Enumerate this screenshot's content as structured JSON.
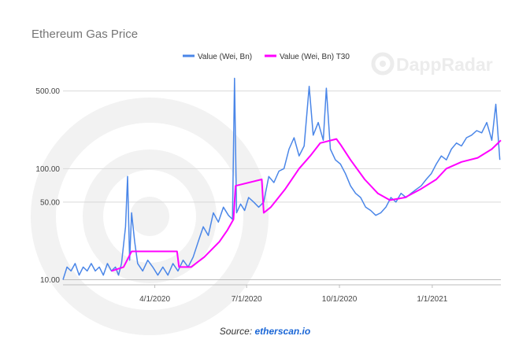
{
  "chart_data": {
    "type": "line",
    "title": "Ethereum Gas Price",
    "y_scale": "log",
    "ylim": [
      9,
      700
    ],
    "y_ticks": [
      {
        "value": 10,
        "label": "10.00"
      },
      {
        "value": 50,
        "label": "50.00"
      },
      {
        "value": 100,
        "label": "100.00"
      },
      {
        "value": 500,
        "label": "500.00"
      }
    ],
    "xlim": [
      "2020-01-01",
      "2021-03-10"
    ],
    "x_ticks": [
      {
        "value": "2020-04-01",
        "label": "4/1/2020"
      },
      {
        "value": "2020-07-01",
        "label": "7/1/2020"
      },
      {
        "value": "2020-10-01",
        "label": "10/1/2020"
      },
      {
        "value": "2021-01-01",
        "label": "1/1/2021"
      }
    ],
    "grid": "horizontal",
    "legend_position": "top",
    "series": [
      {
        "name": "Value (Wei, Bn)",
        "color": "#4a86e8",
        "points": [
          [
            "2020-01-01",
            10
          ],
          [
            "2020-01-05",
            13
          ],
          [
            "2020-01-09",
            12
          ],
          [
            "2020-01-13",
            14
          ],
          [
            "2020-01-17",
            11
          ],
          [
            "2020-01-21",
            13
          ],
          [
            "2020-01-25",
            12
          ],
          [
            "2020-01-29",
            14
          ],
          [
            "2020-02-02",
            12
          ],
          [
            "2020-02-06",
            13
          ],
          [
            "2020-02-10",
            11
          ],
          [
            "2020-02-14",
            14
          ],
          [
            "2020-02-18",
            12
          ],
          [
            "2020-02-22",
            13
          ],
          [
            "2020-02-25",
            11
          ],
          [
            "2020-02-28",
            14
          ],
          [
            "2020-03-03",
            30
          ],
          [
            "2020-03-05",
            85
          ],
          [
            "2020-03-07",
            15
          ],
          [
            "2020-03-09",
            40
          ],
          [
            "2020-03-12",
            22
          ],
          [
            "2020-03-15",
            14
          ],
          [
            "2020-03-20",
            12
          ],
          [
            "2020-03-25",
            15
          ],
          [
            "2020-03-30",
            13
          ],
          [
            "2020-04-04",
            11
          ],
          [
            "2020-04-09",
            13
          ],
          [
            "2020-04-14",
            11
          ],
          [
            "2020-04-19",
            14
          ],
          [
            "2020-04-24",
            12
          ],
          [
            "2020-04-29",
            15
          ],
          [
            "2020-05-04",
            13
          ],
          [
            "2020-05-09",
            16
          ],
          [
            "2020-05-14",
            22
          ],
          [
            "2020-05-19",
            30
          ],
          [
            "2020-05-24",
            25
          ],
          [
            "2020-05-29",
            40
          ],
          [
            "2020-06-03",
            33
          ],
          [
            "2020-06-08",
            45
          ],
          [
            "2020-06-13",
            38
          ],
          [
            "2020-06-17",
            35
          ],
          [
            "2020-06-19",
            650
          ],
          [
            "2020-06-21",
            40
          ],
          [
            "2020-06-25",
            48
          ],
          [
            "2020-06-29",
            42
          ],
          [
            "2020-07-03",
            55
          ],
          [
            "2020-07-08",
            50
          ],
          [
            "2020-07-13",
            45
          ],
          [
            "2020-07-18",
            50
          ],
          [
            "2020-07-23",
            85
          ],
          [
            "2020-07-28",
            75
          ],
          [
            "2020-08-02",
            95
          ],
          [
            "2020-08-07",
            100
          ],
          [
            "2020-08-12",
            150
          ],
          [
            "2020-08-17",
            190
          ],
          [
            "2020-08-22",
            130
          ],
          [
            "2020-08-27",
            160
          ],
          [
            "2020-09-01",
            550
          ],
          [
            "2020-09-05",
            200
          ],
          [
            "2020-09-10",
            260
          ],
          [
            "2020-09-15",
            180
          ],
          [
            "2020-09-18",
            530
          ],
          [
            "2020-09-22",
            150
          ],
          [
            "2020-09-27",
            120
          ],
          [
            "2020-10-02",
            110
          ],
          [
            "2020-10-07",
            90
          ],
          [
            "2020-10-12",
            70
          ],
          [
            "2020-10-17",
            60
          ],
          [
            "2020-10-22",
            55
          ],
          [
            "2020-10-27",
            45
          ],
          [
            "2020-11-01",
            42
          ],
          [
            "2020-11-06",
            38
          ],
          [
            "2020-11-11",
            40
          ],
          [
            "2020-11-16",
            45
          ],
          [
            "2020-11-21",
            55
          ],
          [
            "2020-11-26",
            50
          ],
          [
            "2020-12-01",
            60
          ],
          [
            "2020-12-06",
            55
          ],
          [
            "2020-12-11",
            60
          ],
          [
            "2020-12-16",
            65
          ],
          [
            "2020-12-21",
            70
          ],
          [
            "2020-12-26",
            80
          ],
          [
            "2020-12-31",
            90
          ],
          [
            "2021-01-05",
            110
          ],
          [
            "2021-01-10",
            130
          ],
          [
            "2021-01-15",
            120
          ],
          [
            "2021-01-20",
            150
          ],
          [
            "2021-01-25",
            170
          ],
          [
            "2021-01-30",
            160
          ],
          [
            "2021-02-04",
            190
          ],
          [
            "2021-02-09",
            200
          ],
          [
            "2021-02-14",
            220
          ],
          [
            "2021-02-19",
            210
          ],
          [
            "2021-02-24",
            260
          ],
          [
            "2021-03-01",
            180
          ],
          [
            "2021-03-05",
            380
          ],
          [
            "2021-03-09",
            120
          ]
        ]
      },
      {
        "name": "Value (Wei, Bn) T30",
        "color": "#ff00ff",
        "points": [
          [
            "2020-02-18",
            12
          ],
          [
            "2020-03-01",
            13
          ],
          [
            "2020-03-09",
            18
          ],
          [
            "2020-04-23",
            18
          ],
          [
            "2020-04-25",
            13
          ],
          [
            "2020-05-07",
            13
          ],
          [
            "2020-05-20",
            16
          ],
          [
            "2020-06-04",
            22
          ],
          [
            "2020-06-12",
            28
          ],
          [
            "2020-06-18",
            35
          ],
          [
            "2020-06-20",
            70
          ],
          [
            "2020-07-16",
            80
          ],
          [
            "2020-07-18",
            40
          ],
          [
            "2020-07-25",
            45
          ],
          [
            "2020-08-08",
            65
          ],
          [
            "2020-08-22",
            100
          ],
          [
            "2020-09-02",
            130
          ],
          [
            "2020-09-12",
            170
          ],
          [
            "2020-09-28",
            185
          ],
          [
            "2020-10-02",
            165
          ],
          [
            "2020-10-12",
            120
          ],
          [
            "2020-10-26",
            80
          ],
          [
            "2020-11-08",
            60
          ],
          [
            "2020-11-20",
            52
          ],
          [
            "2020-12-05",
            55
          ],
          [
            "2020-12-20",
            65
          ],
          [
            "2021-01-05",
            80
          ],
          [
            "2021-01-15",
            100
          ],
          [
            "2021-01-30",
            115
          ],
          [
            "2021-02-15",
            125
          ],
          [
            "2021-03-01",
            150
          ],
          [
            "2021-03-10",
            180
          ]
        ]
      }
    ]
  },
  "watermark": {
    "brand": "DappRadar"
  },
  "source": {
    "prefix": "Source: ",
    "link": "etherscan.io"
  }
}
